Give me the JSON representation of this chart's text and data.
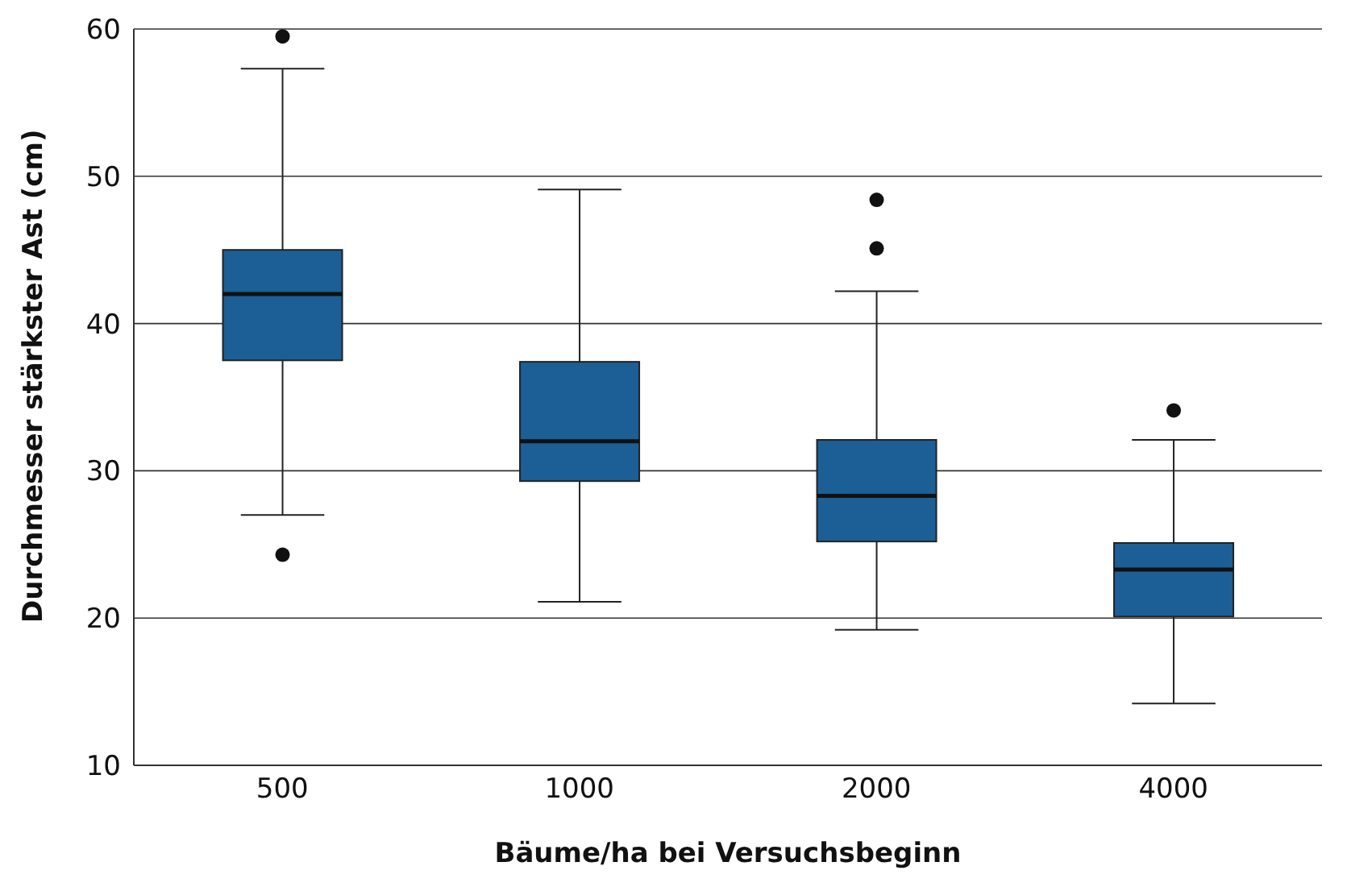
{
  "chart_data": {
    "type": "box",
    "xlabel": "Bäume/ha bei Versuchsbeginn",
    "ylabel": "Durchmesser stärkster Ast (cm)",
    "categories": [
      "500",
      "1000",
      "2000",
      "4000"
    ],
    "color": "#1b5f96",
    "boxes": [
      {
        "low": 27.0,
        "q1": 37.5,
        "median": 42.0,
        "q3": 45.0,
        "high": 57.3,
        "outliers": [
          59.5,
          24.3
        ]
      },
      {
        "low": 21.1,
        "q1": 29.3,
        "median": 32.0,
        "q3": 37.4,
        "high": 49.1
      },
      {
        "low": 19.2,
        "q1": 25.2,
        "median": 28.3,
        "q3": 32.1,
        "high": 42.2,
        "outliers": [
          48.4,
          45.1
        ]
      },
      {
        "low": 14.2,
        "q1": 20.1,
        "median": 23.3,
        "q3": 25.1,
        "high": 32.1,
        "outliers": [
          34.1
        ]
      }
    ],
    "ylim": [
      10,
      60
    ],
    "yticks": [
      10,
      20,
      30,
      40,
      50,
      60
    ],
    "grid": "y",
    "legend": false
  }
}
